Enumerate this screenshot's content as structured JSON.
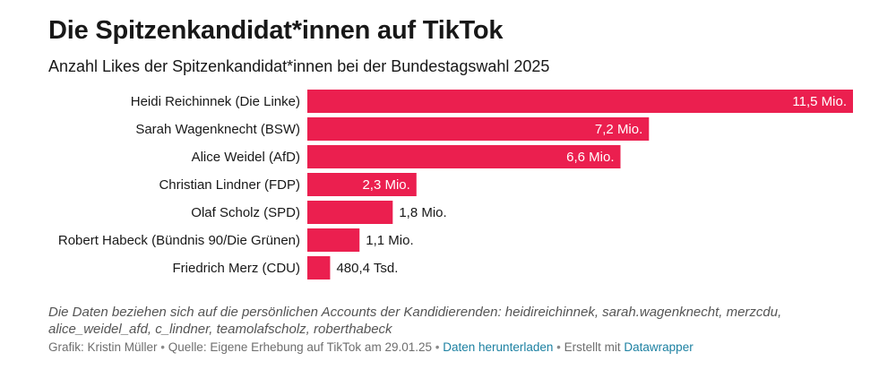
{
  "title": "Die Spitzenkandidat*innen auf TikTok",
  "subtitle": "Anzahl Likes der Spitzenkandidat*innen bei der Bundestagswahl 2025",
  "colors": {
    "bar": "#eb1f4f",
    "label_inside": "#ffffff",
    "label_outside": "#181818",
    "link": "#1d81a2"
  },
  "chart_data": {
    "type": "bar",
    "orientation": "horizontal",
    "categories": [
      "Heidi Reichinnek (Die Linke)",
      "Sarah Wagenknecht (BSW)",
      "Alice Weidel (AfD)",
      "Christian Lindner (FDP)",
      "Olaf Scholz (SPD)",
      "Robert Habeck (Bündnis 90/Die Grünen)",
      "Friedrich Merz (CDU)"
    ],
    "values": [
      11500000,
      7200000,
      6600000,
      2300000,
      1800000,
      1100000,
      480400
    ],
    "value_labels": [
      "11,5 Mio.",
      "7,2 Mio.",
      "6,6 Mio.",
      "2,3 Mio.",
      "1,8 Mio.",
      "1,1 Mio.",
      "480,4 Tsd."
    ],
    "xlim": [
      0,
      11500000
    ],
    "grid": false,
    "legend": "none"
  },
  "notes": "Die Daten beziehen sich auf die persönlichen Accounts der Kandidierenden: heidireichinnek, sarah.wagenknecht, merzcdu, alice_weidel_afd, c_lindner, teamolafscholz, roberthabeck",
  "footer": {
    "credit": "Grafik: Kristin Müller",
    "separator": "•",
    "source": "Quelle: Eigene Erhebung auf TikTok am 29.01.25",
    "download": "Daten herunterladen",
    "made_with": "Erstellt mit",
    "tool": "Datawrapper"
  }
}
